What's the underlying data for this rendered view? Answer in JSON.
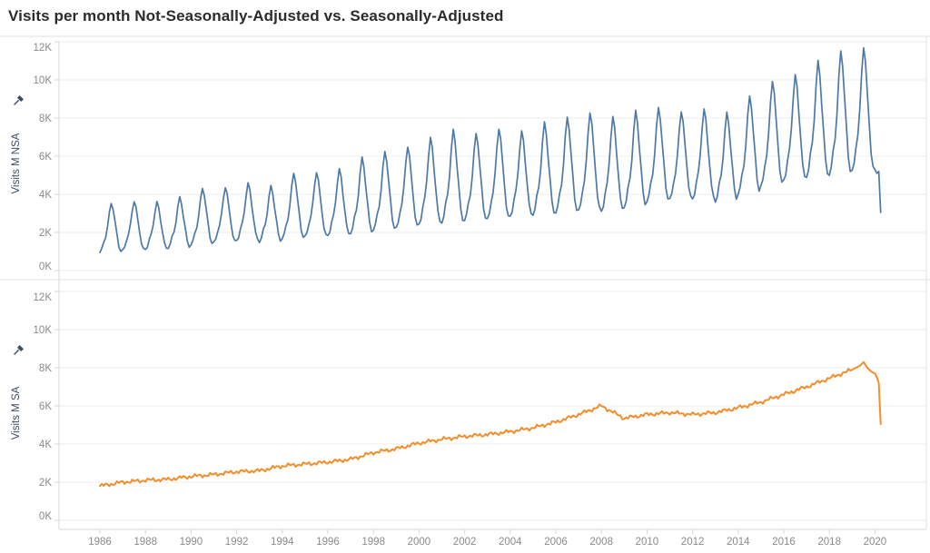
{
  "title": "Visits per month Not-Seasonally-Adjusted vs. Seasonally-Adjusted",
  "colors": {
    "nsa_line": "#4e79a7",
    "sa_line": "#f28e2b",
    "tick_label": "#8a8a8a",
    "axis_title": "#3b4d63",
    "gridline": "#ececec",
    "axis_line": "#d7d7d7",
    "panel_divider": "#e2e2e2",
    "title_text": "#2b2b2b"
  },
  "panels": [
    {
      "axis_title": "Visits M NSA",
      "y_tick_labels": [
        "12K",
        "10K",
        "8K",
        "6K",
        "4K",
        "2K",
        "0K"
      ]
    },
    {
      "axis_title": "Visits M SA",
      "y_tick_labels": [
        "12K",
        "10K",
        "8K",
        "6K",
        "4K",
        "2K",
        "0K"
      ]
    }
  ],
  "x_axis": {
    "tick_labels": [
      "1986",
      "1988",
      "1990",
      "1992",
      "1994",
      "1996",
      "1998",
      "2000",
      "2002",
      "2004",
      "2006",
      "2008",
      "2010",
      "2012",
      "2014",
      "2016",
      "2018",
      "2020"
    ]
  },
  "chart_data": {
    "type": "line",
    "frequency": "monthly",
    "x_range": [
      "1986-01",
      "2020-04"
    ],
    "y_tick_unit": "K",
    "y_axis_range": [
      0,
      12
    ],
    "grid": "horizontal-only",
    "legend": "none (separate stacked panels, axis titles act as series labels)",
    "series": [
      {
        "name": "Visits M NSA",
        "panel": 0,
        "color": "#4e79a7",
        "description": "Strongly seasonal monthly visits; values in thousands read off axis. Encoded as yearly winter trough and summer (July) peak, expanded monthly with seasonal_fractions.",
        "yearly_envelope_columns": [
          "year",
          "trough_k",
          "peak_k"
        ],
        "yearly_envelope": [
          [
            1986,
            0.95,
            3.55
          ],
          [
            1987,
            1.05,
            3.65
          ],
          [
            1988,
            1.1,
            3.6
          ],
          [
            1989,
            1.2,
            3.85
          ],
          [
            1990,
            1.35,
            4.35
          ],
          [
            1991,
            1.45,
            4.4
          ],
          [
            1992,
            1.55,
            4.6
          ],
          [
            1993,
            1.5,
            4.45
          ],
          [
            1994,
            1.65,
            5.15
          ],
          [
            1995,
            1.75,
            5.2
          ],
          [
            1996,
            1.8,
            5.35
          ],
          [
            1997,
            1.95,
            5.95
          ],
          [
            1998,
            2.1,
            6.3
          ],
          [
            1999,
            2.2,
            6.55
          ],
          [
            2000,
            2.4,
            7.0
          ],
          [
            2001,
            2.5,
            7.4
          ],
          [
            2002,
            2.6,
            7.25
          ],
          [
            2003,
            2.65,
            7.5
          ],
          [
            2004,
            2.8,
            7.35
          ],
          [
            2005,
            2.9,
            7.8
          ],
          [
            2006,
            3.0,
            8.1
          ],
          [
            2007,
            3.1,
            8.35
          ],
          [
            2008,
            3.05,
            8.1
          ],
          [
            2009,
            3.3,
            8.4
          ],
          [
            2010,
            3.6,
            8.6
          ],
          [
            2011,
            3.7,
            8.4
          ],
          [
            2012,
            3.7,
            8.5
          ],
          [
            2013,
            3.6,
            8.3
          ],
          [
            2014,
            4.0,
            9.2
          ],
          [
            2015,
            4.4,
            10.0
          ],
          [
            2016,
            4.7,
            10.3
          ],
          [
            2017,
            4.9,
            11.0
          ],
          [
            2018,
            5.0,
            11.55
          ],
          [
            2019,
            5.2,
            11.75
          ]
        ],
        "seasonal_fractions": [
          0.0,
          0.06,
          0.2,
          0.3,
          0.5,
          0.8,
          1.0,
          0.88,
          0.62,
          0.38,
          0.14,
          0.03
        ],
        "monthly_2020": [
          5.3,
          5.1,
          5.2,
          3.05
        ]
      },
      {
        "name": "Visits M SA",
        "panel": 1,
        "color": "#f28e2b",
        "description": "Seasonally-adjusted trend in thousands: January anchor values 1986-2019 (interpolated monthly with small jitter), then explicit monthly values Jan 2019 - Apr 2020 showing the 2019 peak ~8.3K and the 2020 collapse to ~5K.",
        "january_values_1986_2019": [
          1.8,
          2.0,
          2.1,
          2.15,
          2.3,
          2.4,
          2.55,
          2.6,
          2.85,
          2.95,
          3.05,
          3.2,
          3.55,
          3.75,
          4.05,
          4.25,
          4.4,
          4.5,
          4.65,
          4.85,
          5.15,
          5.55,
          6.0,
          5.35,
          5.55,
          5.65,
          5.55,
          5.65,
          5.9,
          6.2,
          6.6,
          7.0,
          7.45,
          7.9
        ],
        "monthly_2019_2020": [
          7.9,
          7.95,
          8.0,
          8.05,
          8.1,
          8.2,
          8.3,
          8.15,
          8.0,
          7.9,
          7.8,
          7.75,
          7.7,
          7.5,
          7.2,
          5.05
        ]
      }
    ]
  }
}
